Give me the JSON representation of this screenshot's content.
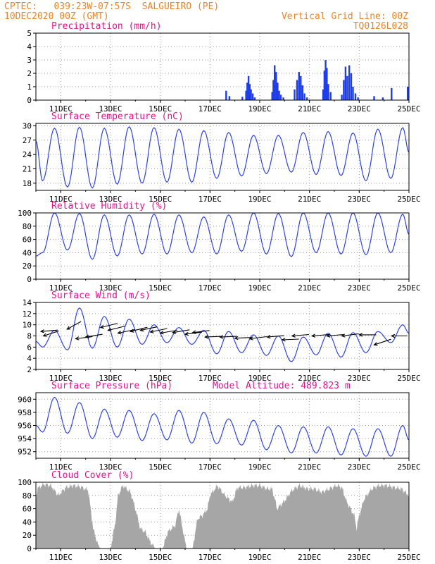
{
  "header": {
    "line1_left": "CPTEC:   039:23W-07:57S  SALGUEIRO (PE)",
    "line2_left": "10DEC2020 00Z (GMT)",
    "line1_right": "Vertical Grid Line: 00Z",
    "line2_right": "TQ0126L028"
  },
  "colors": {
    "header_text": "#e8842a",
    "panel_title": "#e0148c",
    "series_line": "#2e43e6",
    "precip_bar": "#1f3ee8",
    "cloud_fill": "#a6a6a6",
    "wind_arrow": "#000000",
    "grid": "#9a9a9a"
  },
  "x_axis": {
    "tick_labels": [
      "11DEC",
      "13DEC",
      "15DEC",
      "17DEC",
      "19DEC",
      "21DEC",
      "23DEC",
      "25DEC"
    ],
    "tick_days": [
      1,
      3,
      5,
      7,
      9,
      11,
      13,
      15
    ],
    "range_days": [
      0,
      15
    ]
  },
  "chart_data": [
    {
      "id": "precip",
      "type": "bar",
      "title": "Precipitation (mm/h)",
      "ylim": [
        0,
        5
      ],
      "yticks": [
        0,
        1,
        2,
        3,
        4,
        5
      ],
      "grid": true,
      "events": [
        {
          "x": 7.65,
          "v": 0.7
        },
        {
          "x": 7.78,
          "v": 0.3
        },
        {
          "x": 8.3,
          "v": 0.25
        },
        {
          "x": 8.45,
          "v": 0.7
        },
        {
          "x": 8.5,
          "v": 1.3
        },
        {
          "x": 8.55,
          "v": 1.8
        },
        {
          "x": 8.6,
          "v": 1.2
        },
        {
          "x": 8.65,
          "v": 0.8
        },
        {
          "x": 8.72,
          "v": 0.5
        },
        {
          "x": 8.8,
          "v": 0.2
        },
        {
          "x": 9.5,
          "v": 0.6
        },
        {
          "x": 9.55,
          "v": 1.5
        },
        {
          "x": 9.6,
          "v": 2.6
        },
        {
          "x": 9.66,
          "v": 2.1
        },
        {
          "x": 9.72,
          "v": 1.3
        },
        {
          "x": 9.78,
          "v": 0.7
        },
        {
          "x": 9.85,
          "v": 0.4
        },
        {
          "x": 9.95,
          "v": 0.2
        },
        {
          "x": 10.4,
          "v": 0.8
        },
        {
          "x": 10.5,
          "v": 1.5
        },
        {
          "x": 10.58,
          "v": 2.1
        },
        {
          "x": 10.65,
          "v": 1.8
        },
        {
          "x": 10.72,
          "v": 1.1
        },
        {
          "x": 10.8,
          "v": 0.5
        },
        {
          "x": 10.9,
          "v": 0.2
        },
        {
          "x": 11.55,
          "v": 0.8
        },
        {
          "x": 11.6,
          "v": 2.2
        },
        {
          "x": 11.65,
          "v": 3.0
        },
        {
          "x": 11.7,
          "v": 2.4
        },
        {
          "x": 11.76,
          "v": 1.2
        },
        {
          "x": 11.85,
          "v": 0.6
        },
        {
          "x": 12.3,
          "v": 0.4
        },
        {
          "x": 12.38,
          "v": 1.5
        },
        {
          "x": 12.45,
          "v": 2.5
        },
        {
          "x": 12.52,
          "v": 1.8
        },
        {
          "x": 12.6,
          "v": 2.6
        },
        {
          "x": 12.68,
          "v": 2.0
        },
        {
          "x": 12.75,
          "v": 1.0
        },
        {
          "x": 12.85,
          "v": 0.5
        },
        {
          "x": 12.95,
          "v": 0.2
        },
        {
          "x": 13.6,
          "v": 0.3
        },
        {
          "x": 13.95,
          "v": 0.2
        },
        {
          "x": 14.3,
          "v": 0.9
        },
        {
          "x": 14.95,
          "v": 1.0
        }
      ]
    },
    {
      "id": "temp",
      "type": "line",
      "title": "Surface Temperature (nC)",
      "ylim": [
        16.5,
        30.5
      ],
      "yticks": [
        18,
        21,
        24,
        27,
        30
      ],
      "grid": true,
      "daily_max": [
        29.5,
        29.7,
        29.5,
        29.8,
        29.6,
        29.3,
        29.0,
        28.6,
        28.0,
        28.0,
        28.6,
        28.8,
        28.5,
        29.3,
        29.6
      ],
      "daily_min": [
        18.5,
        17.2,
        17.0,
        17.8,
        18.0,
        18.2,
        18.2,
        19.0,
        19.5,
        20.0,
        20.3,
        19.8,
        19.6,
        18.5,
        19.0
      ],
      "start_value": 26.8,
      "end_value": 24.5
    },
    {
      "id": "rh",
      "type": "line",
      "title": "Relative Humidity (%)",
      "ylim": [
        0,
        100
      ],
      "yticks": [
        0,
        20,
        40,
        60,
        80,
        100
      ],
      "grid": true,
      "daily_max": [
        100,
        99,
        97,
        97,
        98,
        97,
        94,
        97,
        100,
        99,
        100,
        100,
        100,
        100,
        98
      ],
      "daily_min": [
        40,
        44,
        30,
        35,
        38,
        38,
        40,
        38,
        42,
        38,
        34,
        40,
        38,
        37,
        40
      ],
      "start_value": 35,
      "end_value": 68
    },
    {
      "id": "wind",
      "type": "line",
      "title": "Surface Wind (m/s)",
      "ylim": [
        2,
        14
      ],
      "yticks": [
        2,
        4,
        6,
        8,
        10,
        12,
        14
      ],
      "grid": true,
      "daily_max": [
        9,
        13,
        11.5,
        11,
        10,
        9.5,
        9,
        8.8,
        8.2,
        8,
        7.8,
        8.5,
        8.6,
        8.8,
        10
      ],
      "daily_min": [
        6,
        5.5,
        5.8,
        6,
        6.5,
        6.8,
        6.5,
        4.8,
        5,
        4.5,
        3.4,
        4.6,
        4.2,
        5.0,
        6.8
      ],
      "start_value": 7,
      "end_value": 8.5,
      "arrows": [
        {
          "x": 0.2,
          "y": 8.8,
          "dx": 24,
          "dy": -2
        },
        {
          "x": 0.3,
          "y": 8.0,
          "dx": 22,
          "dy": -7
        },
        {
          "x": 1.25,
          "y": 9.2,
          "dx": 20,
          "dy": -11
        },
        {
          "x": 1.6,
          "y": 7.5,
          "dx": 24,
          "dy": -3
        },
        {
          "x": 2.0,
          "y": 7.8,
          "dx": 24,
          "dy": -4
        },
        {
          "x": 2.6,
          "y": 9.5,
          "dx": 24,
          "dy": -6
        },
        {
          "x": 2.9,
          "y": 9.0,
          "dx": 24,
          "dy": -6
        },
        {
          "x": 3.3,
          "y": 8.5,
          "dx": 24,
          "dy": -5
        },
        {
          "x": 3.8,
          "y": 8.8,
          "dx": 24,
          "dy": -6
        },
        {
          "x": 4.2,
          "y": 9.0,
          "dx": 24,
          "dy": -5
        },
        {
          "x": 4.6,
          "y": 8.7,
          "dx": 24,
          "dy": -5
        },
        {
          "x": 5.0,
          "y": 8.5,
          "dx": 24,
          "dy": -4
        },
        {
          "x": 5.5,
          "y": 8.6,
          "dx": 24,
          "dy": -4
        },
        {
          "x": 6.0,
          "y": 8.3,
          "dx": 24,
          "dy": -3
        },
        {
          "x": 6.3,
          "y": 8.6,
          "dx": 24,
          "dy": -3
        },
        {
          "x": 6.8,
          "y": 7.8,
          "dx": 24,
          "dy": -1
        },
        {
          "x": 7.4,
          "y": 7.8,
          "dx": 24,
          "dy": -1
        },
        {
          "x": 8.0,
          "y": 7.6,
          "dx": 24,
          "dy": -1
        },
        {
          "x": 8.6,
          "y": 7.5,
          "dx": 24,
          "dy": -3
        },
        {
          "x": 9.3,
          "y": 7.8,
          "dx": 24,
          "dy": -2
        },
        {
          "x": 9.9,
          "y": 7.3,
          "dx": 24,
          "dy": -1
        },
        {
          "x": 10.3,
          "y": 8.0,
          "dx": 24,
          "dy": -2
        },
        {
          "x": 11.1,
          "y": 8.0,
          "dx": 24,
          "dy": -2
        },
        {
          "x": 11.7,
          "y": 8.0,
          "dx": 24,
          "dy": -2
        },
        {
          "x": 12.3,
          "y": 8.0,
          "dx": 24,
          "dy": -3
        },
        {
          "x": 13.0,
          "y": 8.2,
          "dx": 24,
          "dy": 0
        },
        {
          "x": 13.6,
          "y": 6.4,
          "dx": 24,
          "dy": -8
        },
        {
          "x": 14.3,
          "y": 8.0,
          "dx": 22,
          "dy": 0
        }
      ]
    },
    {
      "id": "pressure",
      "type": "line",
      "title": "Surface Pressure (hPa)",
      "annotation": "Model Altitude: 489.823 m",
      "ylim": [
        951,
        961
      ],
      "yticks": [
        952,
        954,
        956,
        958,
        960
      ],
      "grid": true,
      "daily_max": [
        960.3,
        959.5,
        958.5,
        958.3,
        957.8,
        958.3,
        958.0,
        957.0,
        956.8,
        956.0,
        955.8,
        955.8,
        955.5,
        955.5,
        956.0
      ],
      "daily_min": [
        955,
        954.8,
        954.0,
        954.2,
        953.7,
        953.8,
        953.3,
        953.2,
        953.0,
        952.3,
        951.8,
        951.8,
        951.5,
        951.3,
        951.3
      ],
      "start_value": 956.0,
      "end_value": 953.8
    },
    {
      "id": "cloud",
      "type": "area",
      "title": "Cloud Cover (%)",
      "ylim": [
        0,
        100
      ],
      "yticks": [
        0,
        20,
        40,
        60,
        80,
        100
      ],
      "grid": true,
      "profile": [
        [
          0.0,
          70
        ],
        [
          0.05,
          90
        ],
        [
          0.3,
          97
        ],
        [
          0.6,
          95
        ],
        [
          0.9,
          80
        ],
        [
          1.2,
          92
        ],
        [
          1.5,
          95
        ],
        [
          1.8,
          93
        ],
        [
          2.1,
          88
        ],
        [
          2.2,
          60
        ],
        [
          2.3,
          30
        ],
        [
          2.5,
          5
        ],
        [
          2.6,
          0
        ],
        [
          3.0,
          0
        ],
        [
          3.2,
          40
        ],
        [
          3.3,
          80
        ],
        [
          3.5,
          95
        ],
        [
          3.8,
          85
        ],
        [
          4.0,
          60
        ],
        [
          4.2,
          30
        ],
        [
          4.4,
          25
        ],
        [
          4.6,
          10
        ],
        [
          4.8,
          0
        ],
        [
          5.1,
          0
        ],
        [
          5.3,
          25
        ],
        [
          5.45,
          30
        ],
        [
          5.6,
          35
        ],
        [
          5.75,
          60
        ],
        [
          5.9,
          30
        ],
        [
          6.05,
          0
        ],
        [
          6.3,
          0
        ],
        [
          6.5,
          45
        ],
        [
          6.7,
          50
        ],
        [
          6.9,
          60
        ],
        [
          7.0,
          80
        ],
        [
          7.3,
          95
        ],
        [
          7.6,
          80
        ],
        [
          7.9,
          70
        ],
        [
          8.1,
          92
        ],
        [
          8.4,
          92
        ],
        [
          8.7,
          95
        ],
        [
          9.0,
          95
        ],
        [
          9.3,
          90
        ],
        [
          9.5,
          90
        ],
        [
          9.7,
          60
        ],
        [
          10.0,
          72
        ],
        [
          10.3,
          88
        ],
        [
          10.6,
          95
        ],
        [
          10.9,
          90
        ],
        [
          11.2,
          90
        ],
        [
          11.5,
          85
        ],
        [
          11.8,
          90
        ],
        [
          12.1,
          95
        ],
        [
          12.3,
          92
        ],
        [
          12.5,
          70
        ],
        [
          12.8,
          50
        ],
        [
          12.9,
          30
        ],
        [
          13.0,
          50
        ],
        [
          13.2,
          75
        ],
        [
          13.5,
          90
        ],
        [
          13.8,
          95
        ],
        [
          14.1,
          95
        ],
        [
          14.4,
          92
        ],
        [
          14.7,
          90
        ],
        [
          15.0,
          80
        ]
      ]
    }
  ]
}
